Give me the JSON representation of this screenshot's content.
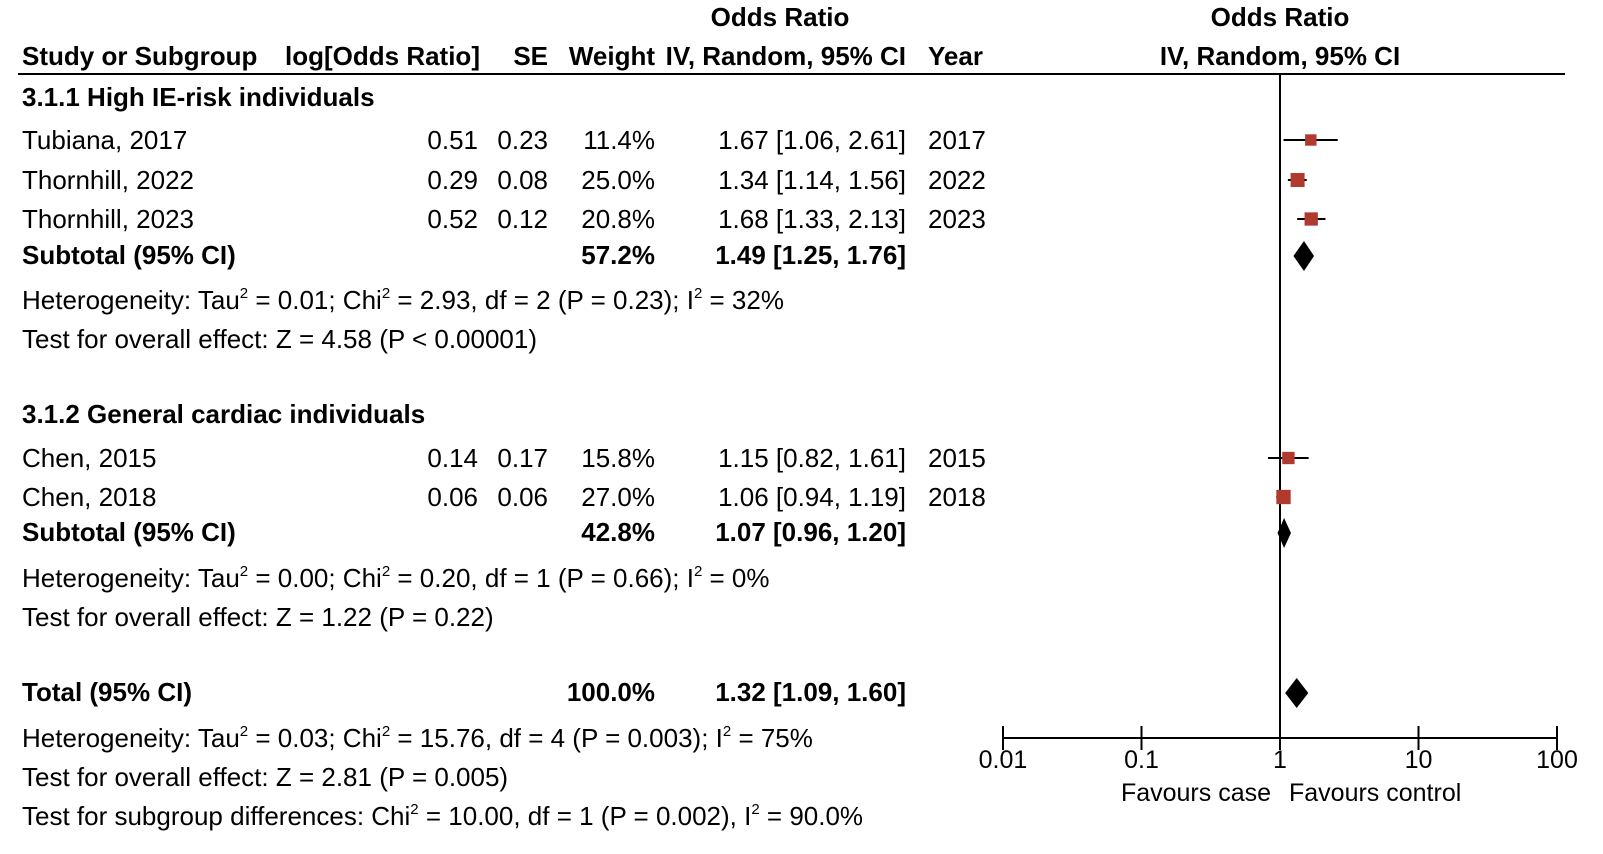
{
  "header": {
    "or_group_left": "Odds Ratio",
    "or_group_right": "Odds Ratio",
    "study": "Study or Subgroup",
    "log_or": "log[Odds Ratio]",
    "se": "SE",
    "weight": "Weight",
    "or_ci": "IV, Random, 95% CI",
    "year": "Year",
    "plot_ci": "IV, Random, 95% CI"
  },
  "groups": [
    {
      "title": "3.1.1 High IE-risk individuals",
      "studies": [
        {
          "name": "Tubiana, 2017",
          "log_or": "0.51",
          "se": "0.23",
          "weight": "11.4%",
          "or_text": "1.67 [1.06, 2.61]",
          "year": "2017"
        },
        {
          "name": "Thornhill, 2022",
          "log_or": "0.29",
          "se": "0.08",
          "weight": "25.0%",
          "or_text": "1.34 [1.14, 1.56]",
          "year": "2022"
        },
        {
          "name": "Thornhill, 2023",
          "log_or": "0.52",
          "se": "0.12",
          "weight": "20.8%",
          "or_text": "1.68 [1.33, 2.13]",
          "year": "2023"
        }
      ],
      "subtotal": {
        "label": "Subtotal (95% CI)",
        "weight": "57.2%",
        "or_text": "1.49 [1.25, 1.76]"
      },
      "heterogeneity": {
        "pre": "Heterogeneity: Tau",
        "a": " = 0.01; Chi",
        "b": " = 2.93, df = 2 (P = 0.23); I",
        "c": " = 32%"
      },
      "overall": "Test for overall effect: Z = 4.58 (P < 0.00001)"
    },
    {
      "title": "3.1.2 General cardiac individuals",
      "studies": [
        {
          "name": "Chen, 2015",
          "log_or": "0.14",
          "se": "0.17",
          "weight": "15.8%",
          "or_text": "1.15 [0.82, 1.61]",
          "year": "2015"
        },
        {
          "name": "Chen, 2018",
          "log_or": "0.06",
          "se": "0.06",
          "weight": "27.0%",
          "or_text": "1.06 [0.94, 1.19]",
          "year": "2018"
        }
      ],
      "subtotal": {
        "label": "Subtotal (95% CI)",
        "weight": "42.8%",
        "or_text": "1.07 [0.96, 1.20]"
      },
      "heterogeneity": {
        "pre": "Heterogeneity: Tau",
        "a": " = 0.00; Chi",
        "b": " = 0.20, df = 1 (P = 0.66); I",
        "c": " = 0%"
      },
      "overall": "Test for overall effect: Z = 1.22 (P = 0.22)"
    }
  ],
  "total": {
    "label": "Total (95% CI)",
    "weight": "100.0%",
    "or_text": "1.32 [1.09, 1.60]",
    "heterogeneity": {
      "pre": "Heterogeneity: Tau",
      "a": " = 0.03; Chi",
      "b": " = 15.76, df = 4 (P = 0.003); I",
      "c": " = 75%"
    },
    "overall": "Test for overall effect: Z = 2.81 (P = 0.005)",
    "subgroup": {
      "pre": "Test for subgroup differences: Chi",
      "a": " = 10.00, df = 1 (P = 0.002), I",
      "b": " = 90.0%"
    }
  },
  "sup2": "2",
  "chart_data": {
    "type": "forest",
    "x_scale": "log",
    "xlim": [
      0.01,
      100
    ],
    "x_ticks": [
      "0.01",
      "0.1",
      "1",
      "10",
      "100"
    ],
    "favours_left": "Favours case",
    "favours_right": "Favours control",
    "studies": [
      {
        "name": "Tubiana, 2017",
        "or": 1.67,
        "lo": 1.06,
        "hi": 2.61,
        "weight": 11.4
      },
      {
        "name": "Thornhill, 2022",
        "or": 1.34,
        "lo": 1.14,
        "hi": 1.56,
        "weight": 25.0
      },
      {
        "name": "Thornhill, 2023",
        "or": 1.68,
        "lo": 1.33,
        "hi": 2.13,
        "weight": 20.8
      },
      {
        "name": "Chen, 2015",
        "or": 1.15,
        "lo": 0.82,
        "hi": 1.61,
        "weight": 15.8
      },
      {
        "name": "Chen, 2018",
        "or": 1.06,
        "lo": 0.94,
        "hi": 1.19,
        "weight": 27.0
      }
    ],
    "summaries": [
      {
        "name": "Subtotal (95% CI)",
        "or": 1.49,
        "lo": 1.25,
        "hi": 1.76
      },
      {
        "name": "Subtotal (95% CI)",
        "or": 1.07,
        "lo": 0.96,
        "hi": 1.2
      },
      {
        "name": "Total (95% CI)",
        "or": 1.32,
        "lo": 1.09,
        "hi": 1.6
      }
    ],
    "colors": {
      "study_marker": "#b03a2e",
      "summary": "#000000"
    }
  }
}
